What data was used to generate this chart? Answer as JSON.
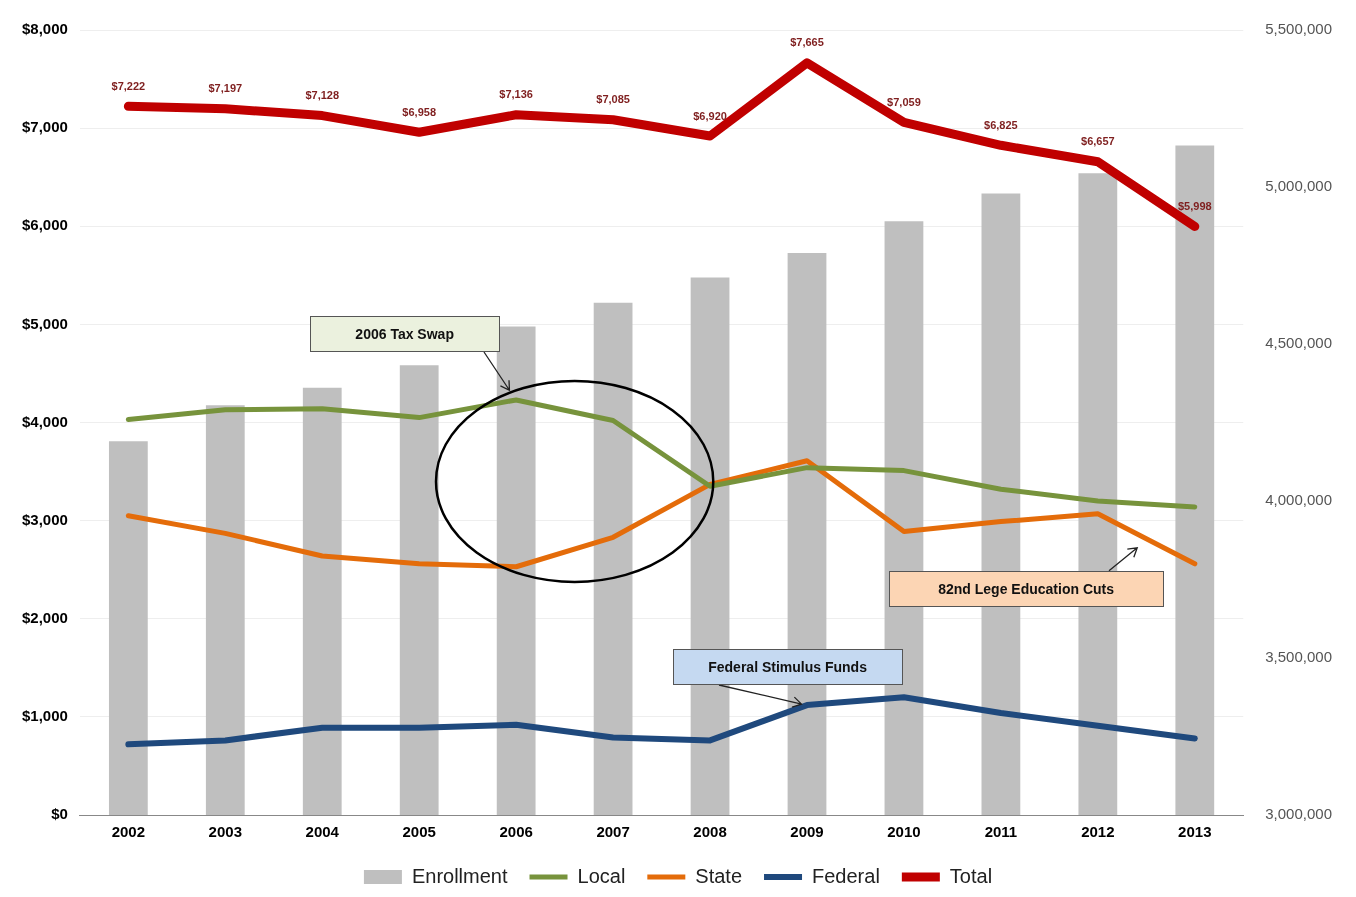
{
  "chart_data": {
    "type": "line",
    "categories": [
      "2002",
      "2003",
      "2004",
      "2005",
      "2006",
      "2007",
      "2008",
      "2009",
      "2010",
      "2011",
      "2012",
      "2013"
    ],
    "series": [
      {
        "name": "Enrollment",
        "type": "bar",
        "axis": "y2",
        "color": "#bfbfbf",
        "values": [
          4190000,
          4305000,
          4361000,
          4432000,
          4556000,
          4631000,
          4712000,
          4790000,
          4891000,
          4979000,
          5044000,
          5132000
        ]
      },
      {
        "name": "Local",
        "type": "line",
        "color": "#77933c",
        "values": [
          4030,
          4130,
          4140,
          4050,
          4230,
          4020,
          3350,
          3540,
          3510,
          3320,
          3200,
          3140
        ]
      },
      {
        "name": "State",
        "type": "line",
        "color": "#e46c0a",
        "values": [
          3050,
          2870,
          2640,
          2560,
          2530,
          2830,
          3370,
          3610,
          2890,
          2990,
          3070,
          2560
        ]
      },
      {
        "name": "Federal",
        "type": "line",
        "color": "#1f497d",
        "values": [
          720,
          760,
          890,
          890,
          920,
          790,
          760,
          1120,
          1200,
          1040,
          910,
          780
        ]
      },
      {
        "name": "Total",
        "type": "line",
        "color": "#c00000",
        "values": [
          7222,
          7197,
          7128,
          6958,
          7136,
          7085,
          6920,
          7665,
          7059,
          6825,
          6657,
          5998
        ],
        "value_labels": [
          "$7,222",
          "$7,197",
          "$7,128",
          "$6,958",
          "$7,136",
          "$7,085",
          "$6,920",
          "$7,665",
          "$7,059",
          "$6,825",
          "$6,657",
          "$5,998"
        ]
      }
    ],
    "ylim": [
      0,
      8000
    ],
    "yticks": [
      {
        "value": 0,
        "label": "$0"
      },
      {
        "value": 1000,
        "label": "$1,000"
      },
      {
        "value": 2000,
        "label": "$2,000"
      },
      {
        "value": 3000,
        "label": "$3,000"
      },
      {
        "value": 4000,
        "label": "$4,000"
      },
      {
        "value": 5000,
        "label": "$5,000"
      },
      {
        "value": 6000,
        "label": "$6,000"
      },
      {
        "value": 7000,
        "label": "$7,000"
      },
      {
        "value": 8000,
        "label": "$8,000"
      }
    ],
    "y2lim": [
      3000000,
      5500000
    ],
    "y2ticks": [
      {
        "value": 3000000,
        "label": "3,000,000"
      },
      {
        "value": 3500000,
        "label": "3,500,000"
      },
      {
        "value": 4000000,
        "label": "4,000,000"
      },
      {
        "value": 4500000,
        "label": "4,500,000"
      },
      {
        "value": 5000000,
        "label": "5,000,000"
      },
      {
        "value": 5500000,
        "label": "5,500,000"
      }
    ],
    "grid": "y",
    "legend": "bottom",
    "marker": "none",
    "line_style": "solid",
    "annotations": [
      "2006 Tax Swap",
      {
        "text": "Federal Stimulus Funds",
        "x": "2009",
        "y": 1120
      },
      "82nd Lege Education Cuts"
    ]
  }
}
